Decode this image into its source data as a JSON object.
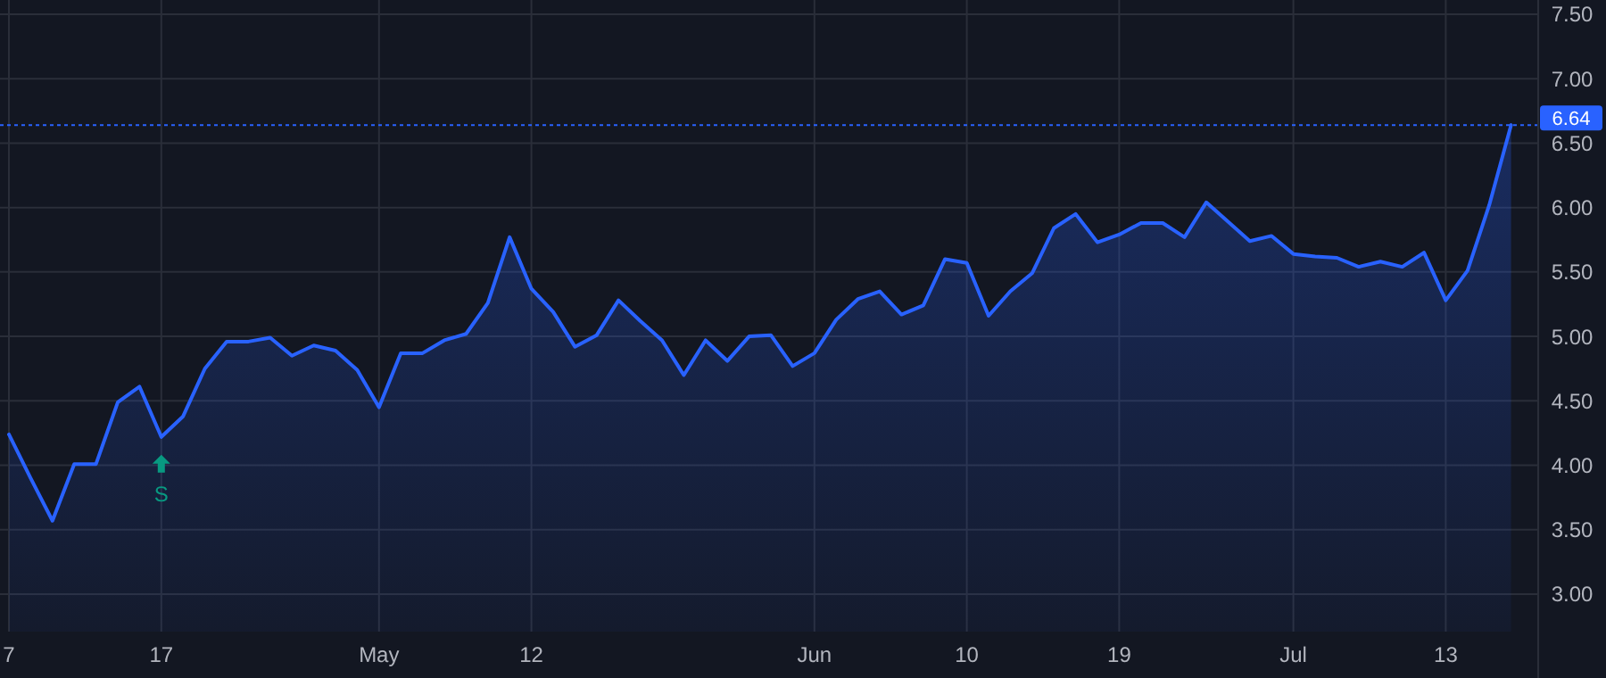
{
  "chart_data": {
    "type": "area",
    "categories": [
      "7",
      null,
      null,
      null,
      null,
      null,
      null,
      "17",
      null,
      null,
      null,
      null,
      null,
      null,
      null,
      null,
      null,
      "May",
      null,
      null,
      null,
      null,
      null,
      null,
      "12",
      null,
      null,
      null,
      null,
      null,
      null,
      null,
      null,
      null,
      null,
      null,
      null,
      "Jun",
      null,
      null,
      null,
      null,
      null,
      null,
      "10",
      null,
      null,
      null,
      null,
      null,
      null,
      "19",
      null,
      null,
      null,
      null,
      null,
      null,
      null,
      "Jul",
      null,
      null,
      null,
      null,
      null,
      null,
      "13",
      null,
      null,
      null
    ],
    "series": [
      {
        "color": "#2962ff",
        "values": [
          4.24,
          3.9,
          3.57,
          4.01,
          4.01,
          4.49,
          4.61,
          4.22,
          4.38,
          4.75,
          4.96,
          4.96,
          4.99,
          4.85,
          4.93,
          4.89,
          4.74,
          4.45,
          4.87,
          4.87,
          4.97,
          5.02,
          5.26,
          5.77,
          5.37,
          5.19,
          4.92,
          5.01,
          5.28,
          5.12,
          4.97,
          4.7,
          4.97,
          4.81,
          5.0,
          5.01,
          4.77,
          4.87,
          5.13,
          5.29,
          5.35,
          5.17,
          5.24,
          5.6,
          5.57,
          5.16,
          5.35,
          5.49,
          5.84,
          5.95,
          5.73,
          5.79,
          5.88,
          5.88,
          5.77,
          6.04,
          5.89,
          5.74,
          5.78,
          5.64,
          5.62,
          5.61,
          5.54,
          5.58,
          5.54,
          5.65,
          5.28,
          5.51,
          6.02,
          6.64
        ]
      }
    ],
    "ylim": [
      2.71,
      7.61
    ],
    "yticks": [
      {
        "value": 3,
        "label": "3.00"
      },
      {
        "value": 3.5,
        "label": "3.50"
      },
      {
        "value": 4,
        "label": "4.00"
      },
      {
        "value": 4.5,
        "label": "4.50"
      },
      {
        "value": 5,
        "label": "5.00"
      },
      {
        "value": 5.5,
        "label": "5.50"
      },
      {
        "value": 6,
        "label": "6.00"
      },
      {
        "value": 6.5,
        "label": "6.50"
      },
      {
        "value": 7,
        "label": "7.00"
      },
      {
        "value": 7.5,
        "label": "7.50"
      }
    ],
    "grid": true,
    "line_style": "solid",
    "ref_lines": [
      {
        "axis": "y",
        "value": 6.64,
        "label": "6.64",
        "color": "#2962ff",
        "line_style": "dotted"
      }
    ],
    "annotations": [
      {
        "text": "S",
        "x": "17",
        "y": 4.22
      }
    ]
  }
}
